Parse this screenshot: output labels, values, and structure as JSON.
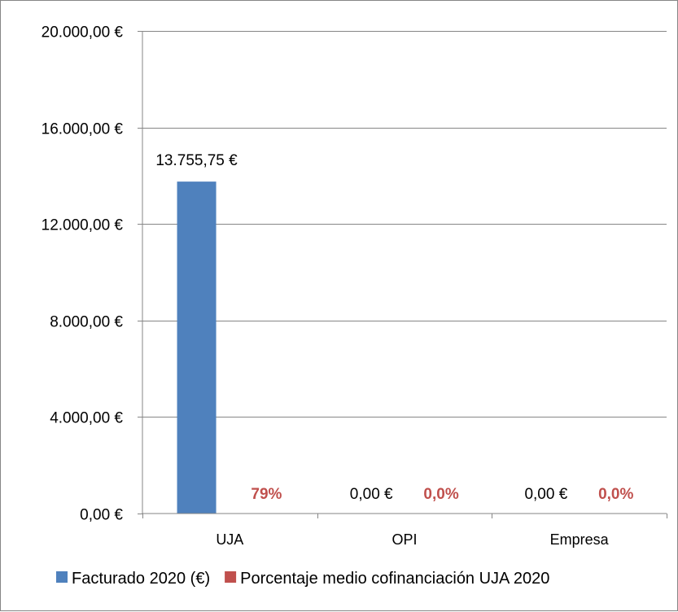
{
  "chart_data": {
    "type": "bar",
    "categories": [
      "UJA",
      "OPI",
      "Empresa"
    ],
    "series": [
      {
        "name": "Facturado  2020 (€)",
        "values": [
          13755.75,
          0,
          0
        ],
        "labels": [
          "13.755,75 €",
          "0,00 €",
          "0,00 €"
        ],
        "color": "#4f81bd"
      },
      {
        "name": "Porcentaje medio cofinanciación UJA 2020",
        "values": [
          0.79,
          0,
          0
        ],
        "labels": [
          "79%",
          "0,0%",
          "0,0%"
        ],
        "color": "#c0504d"
      }
    ],
    "y_ticks": [
      {
        "value": 0,
        "label": "0,00 €"
      },
      {
        "value": 4000,
        "label": "4.000,00 €"
      },
      {
        "value": 8000,
        "label": "8.000,00 €"
      },
      {
        "value": 12000,
        "label": "12.000,00 €"
      },
      {
        "value": 16000,
        "label": "16.000,00 €"
      },
      {
        "value": 20000,
        "label": "20.000,00 €"
      }
    ],
    "ylim": [
      0,
      20000
    ],
    "grid": true,
    "legend_position": "bottom",
    "title": "",
    "xlabel": "",
    "ylabel": ""
  }
}
